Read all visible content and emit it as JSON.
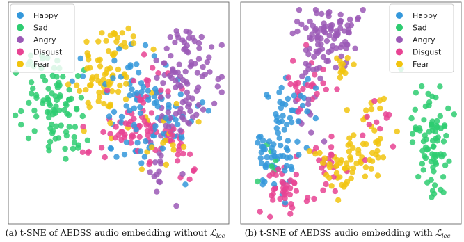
{
  "legend": [
    {
      "name": "Happy",
      "color": "#3498db"
    },
    {
      "name": "Sad",
      "color": "#2ecc71"
    },
    {
      "name": "Angry",
      "color": "#9b59b6"
    },
    {
      "name": "Disgust",
      "color": "#e84393"
    },
    {
      "name": "Fear",
      "color": "#f1c40f"
    }
  ],
  "panels": [
    {
      "caption_prefix": "(a) t-SNE of AEDSS audio embedding without ",
      "caption_symbol": "ℒ",
      "caption_sub": "lec"
    },
    {
      "caption_prefix": "(b) t-SNE of AEDSS audio embedding with ",
      "caption_symbol": "ℒ",
      "caption_sub": "lec"
    }
  ],
  "chart_data": [
    {
      "type": "scatter",
      "title": "",
      "xlabel": "",
      "ylabel": "",
      "grid": false,
      "legend_position": "top-left",
      "xlim": [
        0,
        100
      ],
      "ylim": [
        0,
        100
      ],
      "series": [
        {
          "name": "Happy",
          "color": "#3498db",
          "clusters": [
            {
              "cx": 58,
              "cy": 58,
              "sx": 9,
              "sy": 12,
              "n": 55
            },
            {
              "cx": 72,
              "cy": 45,
              "sx": 7,
              "sy": 8,
              "n": 30
            },
            {
              "cx": 55,
              "cy": 28,
              "sx": 6,
              "sy": 8,
              "n": 12
            }
          ]
        },
        {
          "name": "Sad",
          "color": "#2ecc71",
          "clusters": [
            {
              "cx": 17,
              "cy": 57,
              "sx": 7,
              "sy": 11,
              "n": 70
            },
            {
              "cx": 25,
              "cy": 38,
              "sx": 5,
              "sy": 4,
              "n": 15
            },
            {
              "cx": 30,
              "cy": 52,
              "sx": 3,
              "sy": 4,
              "n": 8
            }
          ]
        },
        {
          "name": "Angry",
          "color": "#9b59b6",
          "clusters": [
            {
              "cx": 82,
              "cy": 72,
              "sx": 7,
              "sy": 10,
              "n": 75
            },
            {
              "cx": 75,
              "cy": 50,
              "sx": 6,
              "sy": 6,
              "n": 25
            },
            {
              "cx": 70,
              "cy": 18,
              "sx": 4,
              "sy": 8,
              "n": 14
            }
          ]
        },
        {
          "name": "Disgust",
          "color": "#e84393",
          "clusters": [
            {
              "cx": 55,
              "cy": 40,
              "sx": 11,
              "sy": 8,
              "n": 55
            },
            {
              "cx": 62,
              "cy": 60,
              "sx": 7,
              "sy": 9,
              "n": 25
            },
            {
              "cx": 80,
              "cy": 32,
              "sx": 6,
              "sy": 6,
              "n": 15
            }
          ]
        },
        {
          "name": "Fear",
          "color": "#f1c40f",
          "clusters": [
            {
              "cx": 42,
              "cy": 65,
              "sx": 7,
              "sy": 8,
              "n": 55
            },
            {
              "cx": 45,
              "cy": 85,
              "sx": 10,
              "sy": 5,
              "n": 22
            },
            {
              "cx": 70,
              "cy": 40,
              "sx": 8,
              "sy": 7,
              "n": 18
            }
          ]
        }
      ]
    },
    {
      "type": "scatter",
      "title": "",
      "xlabel": "",
      "ylabel": "",
      "grid": false,
      "legend_position": "top-right",
      "xlim": [
        0,
        100
      ],
      "ylim": [
        0,
        100
      ],
      "series": [
        {
          "name": "Happy",
          "color": "#3498db",
          "clusters": [
            {
              "cx": 15,
              "cy": 30,
              "sx": 5,
              "sy": 8,
              "n": 55
            },
            {
              "cx": 22,
              "cy": 55,
              "sx": 5,
              "sy": 8,
              "n": 30
            }
          ]
        },
        {
          "name": "Sad",
          "color": "#2ecc71",
          "clusters": [
            {
              "cx": 88,
              "cy": 37,
              "sx": 5,
              "sy": 14,
              "n": 80
            },
            {
              "cx": 10,
              "cy": 25,
              "sx": 3,
              "sy": 5,
              "n": 6
            }
          ]
        },
        {
          "name": "Angry",
          "color": "#9b59b6",
          "clusters": [
            {
              "cx": 42,
              "cy": 87,
              "sx": 7,
              "sy": 7,
              "n": 80
            },
            {
              "cx": 35,
              "cy": 72,
              "sx": 4,
              "sy": 4,
              "n": 15
            },
            {
              "cx": 30,
              "cy": 50,
              "sx": 4,
              "sy": 5,
              "n": 10
            }
          ]
        },
        {
          "name": "Disgust",
          "color": "#e84393",
          "clusters": [
            {
              "cx": 18,
              "cy": 15,
              "sx": 6,
              "sy": 6,
              "n": 40
            },
            {
              "cx": 28,
              "cy": 62,
              "sx": 6,
              "sy": 6,
              "n": 25
            },
            {
              "cx": 40,
              "cy": 25,
              "sx": 6,
              "sy": 7,
              "n": 20
            },
            {
              "cx": 62,
              "cy": 47,
              "sx": 4,
              "sy": 5,
              "n": 10
            }
          ]
        },
        {
          "name": "Fear",
          "color": "#f1c40f",
          "clusters": [
            {
              "cx": 45,
              "cy": 25,
              "sx": 6,
              "sy": 6,
              "n": 40
            },
            {
              "cx": 58,
              "cy": 30,
              "sx": 4,
              "sy": 5,
              "n": 20
            },
            {
              "cx": 48,
              "cy": 70,
              "sx": 3,
              "sy": 3,
              "n": 12
            },
            {
              "cx": 60,
              "cy": 45,
              "sx": 4,
              "sy": 8,
              "n": 15
            }
          ]
        }
      ]
    }
  ]
}
